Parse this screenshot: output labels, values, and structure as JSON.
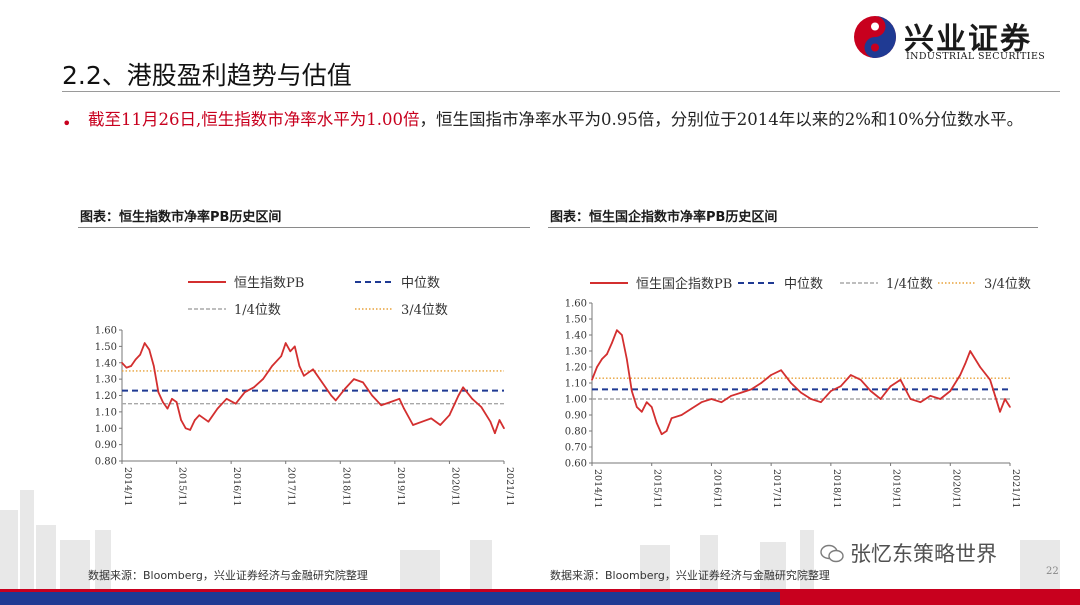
{
  "header": {
    "brand_cn": "兴业证券",
    "brand_en": "INDUSTRIAL SECURITIES",
    "title": "2.2、港股盈利趋势与估值"
  },
  "bullet": {
    "highlight": "截至11月26日,恒生指数市净率水平为1.00倍",
    "rest": "，恒生国指市净率水平为0.95倍，分别位于2014年以来的2%和10%分位数水平。"
  },
  "figures": {
    "left_title": "图表：恒生指数市净率PB历史区间",
    "right_title": "图表：恒生国企指数市净率PB历史区间",
    "left_source": "数据来源：Bloomberg，兴业证券经济与金融研究院整理",
    "right_source": "数据来源：Bloomberg，兴业证券经济与金融研究院整理"
  },
  "watermark": "张忆东策略世界",
  "page_number": "22",
  "colors": {
    "series": "#d32f2f",
    "median": "#1f3a93",
    "q1": "#a8a8a8",
    "q3": "#e8a23a",
    "brand_red": "#c8001e",
    "brand_blue": "#1f3a93"
  },
  "chart_data": [
    {
      "type": "line",
      "title": "恒生指数市净率PB历史区间",
      "x_ticks": [
        "2014/11",
        "2015/11",
        "2016/11",
        "2017/11",
        "2018/11",
        "2019/11",
        "2020/11",
        "2021/11"
      ],
      "x_range": [
        "2014-11",
        "2021-11"
      ],
      "ylim": [
        0.8,
        1.6
      ],
      "y_ticks": [
        "0.80",
        "0.90",
        "1.00",
        "1.10",
        "1.20",
        "1.30",
        "1.40",
        "1.50",
        "1.60"
      ],
      "legend": {
        "series": "恒生指数PB",
        "median": "中位数",
        "q1": "1/4位数",
        "q3": "3/4位数"
      },
      "reference_lines": {
        "median": 1.23,
        "q1": 1.15,
        "q3": 1.35
      },
      "series": [
        {
          "name": "恒生指数PB",
          "x": [
            "2014-11",
            "2014-12",
            "2015-01",
            "2015-02",
            "2015-03",
            "2015-04",
            "2015-05",
            "2015-06",
            "2015-07",
            "2015-08",
            "2015-09",
            "2015-10",
            "2015-11",
            "2015-12",
            "2016-01",
            "2016-02",
            "2016-03",
            "2016-04",
            "2016-06",
            "2016-08",
            "2016-10",
            "2016-12",
            "2017-02",
            "2017-04",
            "2017-06",
            "2017-08",
            "2017-10",
            "2017-11",
            "2017-12",
            "2018-01",
            "2018-02",
            "2018-03",
            "2018-05",
            "2018-07",
            "2018-09",
            "2018-10",
            "2018-12",
            "2019-02",
            "2019-04",
            "2019-06",
            "2019-08",
            "2019-10",
            "2019-12",
            "2020-01",
            "2020-03",
            "2020-05",
            "2020-07",
            "2020-09",
            "2020-11",
            "2021-01",
            "2021-02",
            "2021-04",
            "2021-06",
            "2021-08",
            "2021-09",
            "2021-10",
            "2021-11"
          ],
          "y": [
            1.4,
            1.37,
            1.38,
            1.42,
            1.45,
            1.52,
            1.48,
            1.38,
            1.22,
            1.16,
            1.12,
            1.18,
            1.16,
            1.05,
            1.0,
            0.99,
            1.05,
            1.08,
            1.04,
            1.12,
            1.18,
            1.15,
            1.22,
            1.25,
            1.3,
            1.38,
            1.44,
            1.52,
            1.47,
            1.5,
            1.38,
            1.32,
            1.36,
            1.28,
            1.2,
            1.17,
            1.24,
            1.3,
            1.28,
            1.2,
            1.14,
            1.16,
            1.18,
            1.12,
            1.02,
            1.04,
            1.06,
            1.02,
            1.08,
            1.2,
            1.25,
            1.18,
            1.13,
            1.04,
            0.97,
            1.05,
            1.0
          ]
        }
      ]
    },
    {
      "type": "line",
      "title": "恒生国企指数市净率PB历史区间",
      "x_ticks": [
        "2014/11",
        "2015/11",
        "2016/11",
        "2017/11",
        "2018/11",
        "2019/11",
        "2020/11",
        "2021/11"
      ],
      "x_range": [
        "2014-11",
        "2021-11"
      ],
      "ylim": [
        0.6,
        1.6
      ],
      "y_ticks": [
        "0.60",
        "0.70",
        "0.80",
        "0.90",
        "1.00",
        "1.10",
        "1.20",
        "1.30",
        "1.40",
        "1.50",
        "1.60"
      ],
      "legend": {
        "series": "恒生国企指数PB",
        "median": "中位数",
        "q1": "1/4位数",
        "q3": "3/4位数"
      },
      "reference_lines": {
        "median": 1.06,
        "q1": 1.0,
        "q3": 1.13
      },
      "series": [
        {
          "name": "恒生国企指数PB",
          "x": [
            "2014-11",
            "2014-12",
            "2015-01",
            "2015-02",
            "2015-03",
            "2015-04",
            "2015-05",
            "2015-06",
            "2015-07",
            "2015-08",
            "2015-09",
            "2015-10",
            "2015-11",
            "2015-12",
            "2016-01",
            "2016-02",
            "2016-03",
            "2016-05",
            "2016-07",
            "2016-09",
            "2016-11",
            "2017-01",
            "2017-03",
            "2017-05",
            "2017-07",
            "2017-09",
            "2017-11",
            "2018-01",
            "2018-03",
            "2018-05",
            "2018-07",
            "2018-09",
            "2018-11",
            "2019-01",
            "2019-03",
            "2019-05",
            "2019-07",
            "2019-09",
            "2019-11",
            "2020-01",
            "2020-03",
            "2020-05",
            "2020-07",
            "2020-09",
            "2020-11",
            "2021-01",
            "2021-02",
            "2021-03",
            "2021-05",
            "2021-07",
            "2021-08",
            "2021-09",
            "2021-10",
            "2021-11"
          ],
          "y": [
            1.12,
            1.2,
            1.25,
            1.28,
            1.35,
            1.43,
            1.4,
            1.25,
            1.05,
            0.95,
            0.92,
            0.98,
            0.95,
            0.85,
            0.78,
            0.8,
            0.88,
            0.9,
            0.94,
            0.98,
            1.0,
            0.98,
            1.02,
            1.04,
            1.06,
            1.1,
            1.15,
            1.18,
            1.1,
            1.04,
            1.0,
            0.98,
            1.05,
            1.08,
            1.15,
            1.12,
            1.05,
            1.0,
            1.08,
            1.12,
            1.0,
            0.98,
            1.02,
            1.0,
            1.05,
            1.15,
            1.22,
            1.3,
            1.2,
            1.12,
            1.02,
            0.92,
            1.0,
            0.95
          ]
        }
      ]
    }
  ]
}
